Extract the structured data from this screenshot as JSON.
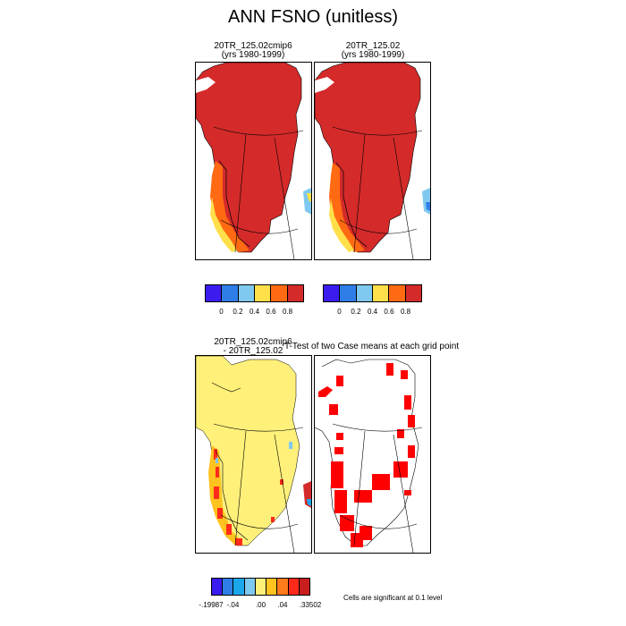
{
  "figure": {
    "title": "ANN FSNO (unitless)"
  },
  "panels": [
    {
      "line1": "20TR_125.02cmip6",
      "line2": "(yrs 1980-1999)"
    },
    {
      "line1": "20TR_125.02",
      "line2": "(yrs 1980-1999)"
    }
  ],
  "diff_panel": {
    "line1": "20TR_125.02cmip6",
    "line2": "- 20TR_125.02"
  },
  "ttest_panel": {
    "title": "T-Test of two Case means at each grid point",
    "note": "Cells are significant at 0.1 level",
    "fill_color": "#ff0000"
  },
  "colorbar_main": {
    "colors": [
      "#3b1cf0",
      "#2f7ee8",
      "#7fc8ef",
      "#ffe04a",
      "#ff6a12",
      "#d42a2a"
    ],
    "labels": [
      "0",
      "0.2",
      "0.4",
      "0.6",
      "0.8"
    ]
  },
  "colorbar_diff": {
    "colors": [
      "#3b1cf0",
      "#2f7ee8",
      "#1aa7ec",
      "#7fc8ef",
      "#fff07a",
      "#ffc21f",
      "#ff7a1a",
      "#ff2a1a",
      "#c81e1e"
    ],
    "labels": [
      ".19987",
      ".04",
      ".00",
      ".04",
      ".33502"
    ]
  },
  "map_colors": {
    "ocean": "#ffffff",
    "coast": "#000000",
    "grid": "#000000"
  }
}
